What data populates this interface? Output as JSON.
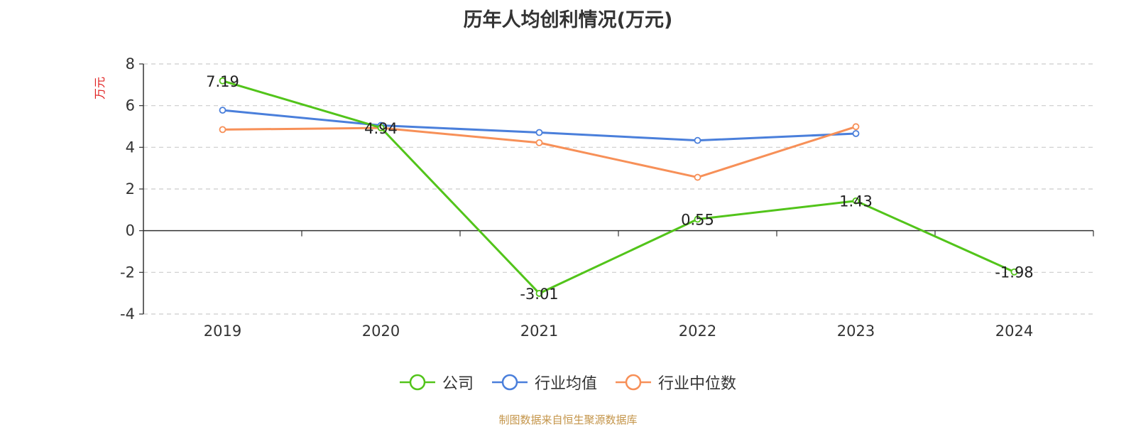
{
  "colors": {
    "company": "#52c41a",
    "industry_mean": "#4a7fdb",
    "industry_median": "#f79058",
    "ylabel": "#e02020",
    "source": "#c4954a"
  },
  "source_text": "制图数据来自恒生聚源数据库",
  "chart_data": {
    "type": "line",
    "title": "历年人均创利情况(万元)",
    "ylabel": "万元",
    "xlabel": "",
    "categories": [
      "2019",
      "2020",
      "2021",
      "2022",
      "2023",
      "2024"
    ],
    "ylim": [
      -4,
      8
    ],
    "yticks": [
      -4,
      -2,
      0,
      2,
      4,
      6,
      8
    ],
    "grid": true,
    "legend_position": "bottom",
    "series": [
      {
        "name": "公司",
        "values": [
          7.19,
          4.94,
          -3.01,
          0.55,
          1.43,
          -1.98
        ],
        "labels": [
          "7.19",
          "4.94",
          "-3.01",
          "0.55",
          "1.43",
          "-1.98"
        ]
      },
      {
        "name": "行业均值",
        "values": [
          5.78,
          5.05,
          4.71,
          4.33,
          4.66,
          null
        ]
      },
      {
        "name": "行业中位数",
        "values": [
          4.85,
          4.93,
          4.22,
          2.56,
          4.99,
          null
        ]
      }
    ]
  }
}
